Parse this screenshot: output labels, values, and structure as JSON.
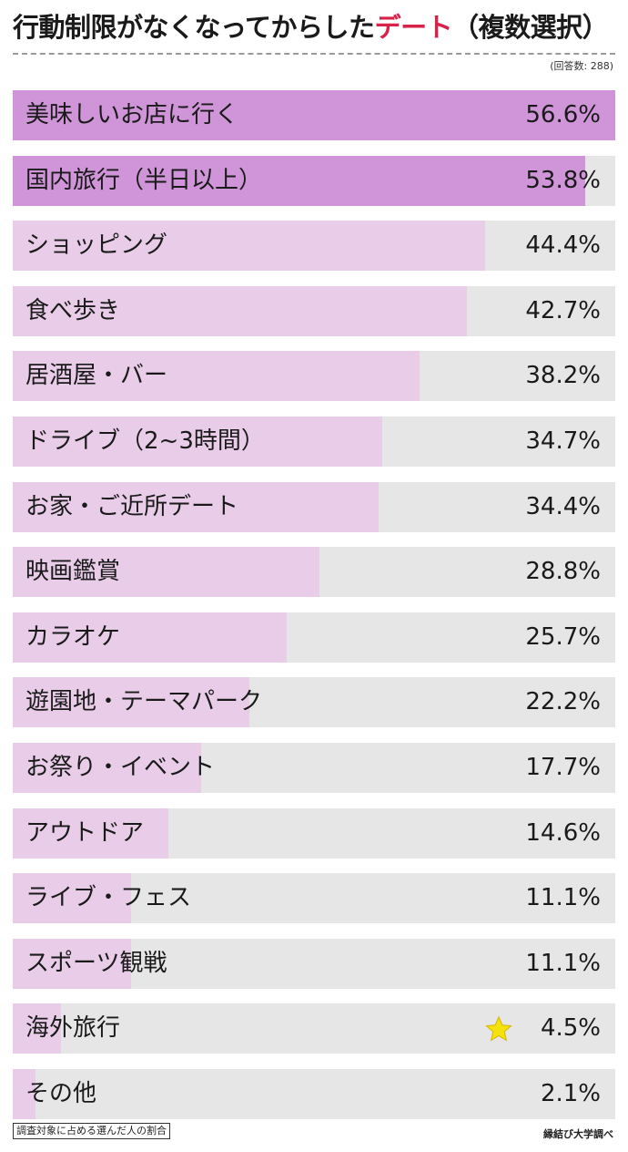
{
  "title": {
    "main": "行動制限がなくなってからした",
    "accent": "デート",
    "suffix": "（複数選択）"
  },
  "respondents": "(回答数: 288)",
  "footnote": "調査対象に占める選んだ人の割合",
  "source": "縁結び大学調べ",
  "colors": {
    "accent": "#d8224a",
    "top_bar": "#cf95d8",
    "bar": "#e8cce8",
    "track": "#e6e6e6",
    "star": "#f5e20c"
  },
  "chart_data": {
    "type": "bar",
    "orientation": "horizontal",
    "unit": "%",
    "xlim": [
      0,
      56.6
    ],
    "categories": [
      "美味しいお店に行く",
      "国内旅行（半日以上）",
      "ショッピング",
      "食べ歩き",
      "居酒屋・バー",
      "ドライブ（2~3時間）",
      "お家・ご近所デート",
      "映画鑑賞",
      "カラオケ",
      "遊園地・テーマパーク",
      "お祭り・イベント",
      "アウトドア",
      "ライブ・フェス",
      "スポーツ観戦",
      "海外旅行",
      "その他"
    ],
    "values": [
      56.6,
      53.8,
      44.4,
      42.7,
      38.2,
      34.7,
      34.4,
      28.8,
      25.7,
      22.2,
      17.7,
      14.6,
      11.1,
      11.1,
      4.5,
      2.1
    ],
    "labels": [
      "56.6%",
      "53.8%",
      "44.4%",
      "42.7%",
      "38.2%",
      "34.7%",
      "34.4%",
      "28.8%",
      "25.7%",
      "22.2%",
      "17.7%",
      "14.6%",
      "11.1%",
      "11.1%",
      "4.5%",
      "2.1%"
    ],
    "highlighted_top": 2,
    "star_category": "海外旅行"
  }
}
